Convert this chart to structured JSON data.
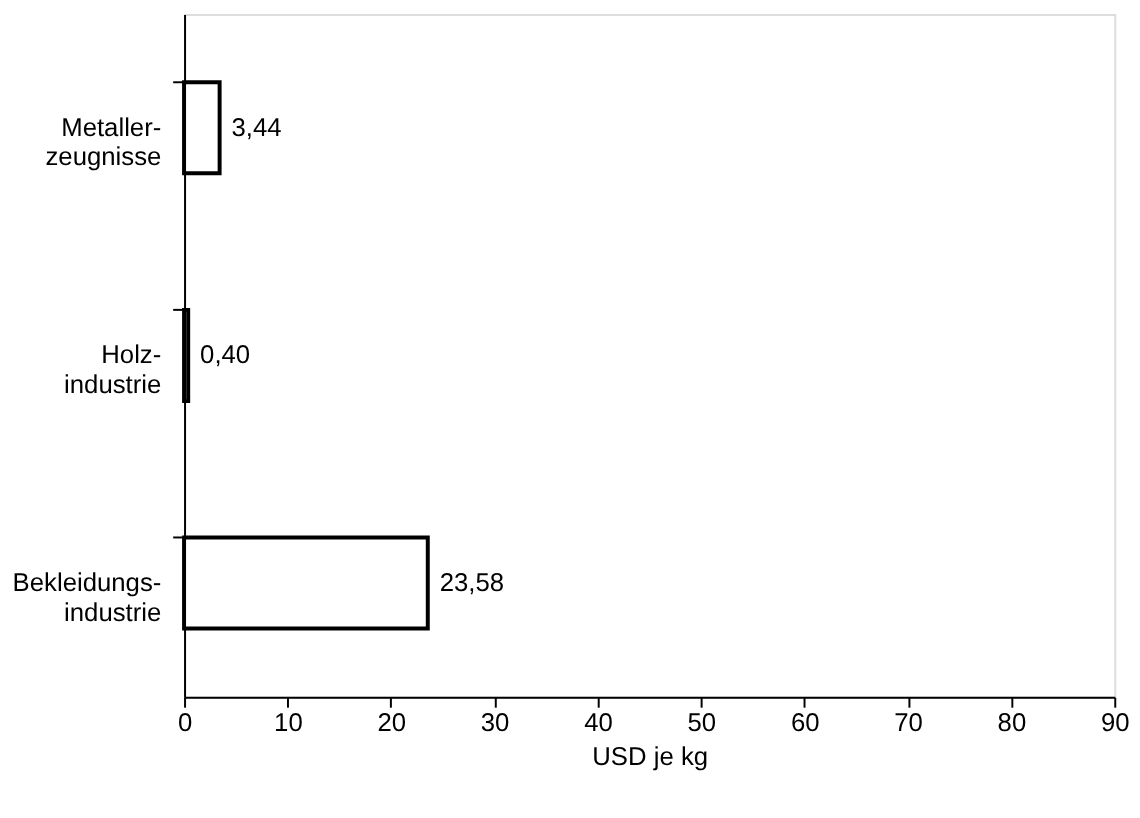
{
  "chart_data": {
    "type": "bar",
    "orientation": "horizontal",
    "categories": [
      "Metaller-\nzeugnisse",
      "Holz-\nindustrie",
      "Bekleidungs-\nindustrie"
    ],
    "values": [
      3.44,
      0.4,
      23.58
    ],
    "value_labels": [
      "3,44",
      "0,40",
      "23,58"
    ],
    "color": "#ffffff",
    "xlabel": "USD je kg",
    "xlim": [
      0,
      90
    ],
    "xticks": [
      0,
      10,
      20,
      30,
      40,
      50,
      60,
      70,
      80,
      90
    ],
    "grid": false
  }
}
